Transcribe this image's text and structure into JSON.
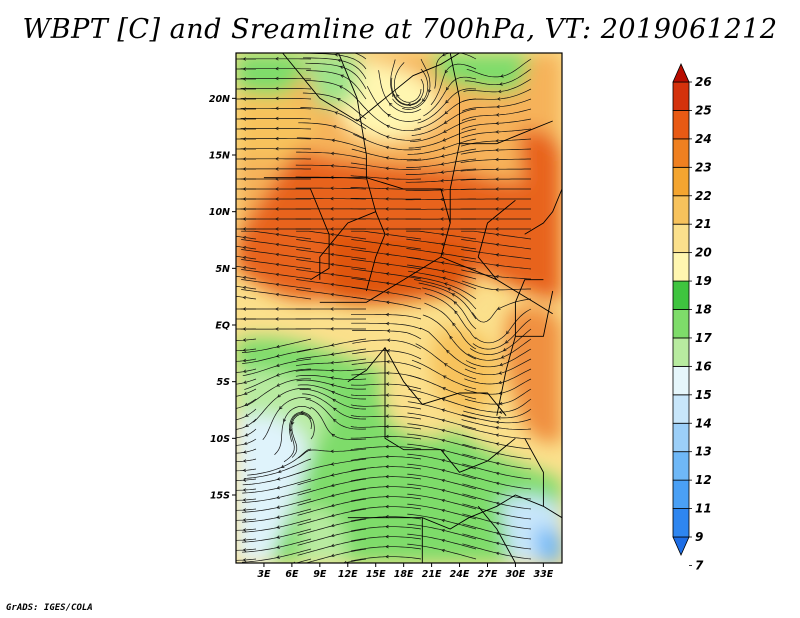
{
  "title": "WBPT [C] and Sreamline at 700hPa, VT: 2019061212",
  "credit": "GrADS: IGES/COLA",
  "map": {
    "type": "field-map-with-streamlines",
    "variable": "Wet-bulb potential temperature",
    "units": "C",
    "level": "700hPa",
    "valid_time": "2019061212",
    "lon_range": [
      0,
      35
    ],
    "lat_range": [
      -21,
      24
    ],
    "lon_ticks": [
      "3E",
      "6E",
      "9E",
      "12E",
      "15E",
      "18E",
      "21E",
      "24E",
      "27E",
      "30E",
      "33E"
    ],
    "lon_tick_values": [
      3,
      6,
      9,
      12,
      15,
      18,
      21,
      24,
      27,
      30,
      33
    ],
    "lat_ticks": [
      "20N",
      "15N",
      "10N",
      "5N",
      "EQ",
      "5S",
      "10S",
      "15S"
    ],
    "lat_tick_values": [
      20,
      15,
      10,
      5,
      0,
      -5,
      -10,
      -15
    ]
  },
  "colorbar": {
    "labels": [
      "7",
      "9",
      "11",
      "12",
      "13",
      "14",
      "15",
      "16",
      "17",
      "18",
      "19",
      "20",
      "21",
      "22",
      "23",
      "24",
      "25",
      "26"
    ],
    "colors": [
      "#1e6ee6",
      "#2e86f0",
      "#4aa0f5",
      "#6fb8f7",
      "#9ccff8",
      "#c8e6fa",
      "#e6f6fb",
      "#b8eba0",
      "#7edc6a",
      "#3fc43f",
      "#fff6b0",
      "#fbe08c",
      "#f7c25c",
      "#f4a530",
      "#ef8020",
      "#e85a14",
      "#d4320c",
      "#b80c00"
    ]
  },
  "regions": [
    {
      "name": "north-hot-band",
      "color": "#f09040"
    },
    {
      "name": "central-hot-core",
      "color": "#e8641a"
    },
    {
      "name": "southern-green",
      "color": "#80d96a"
    },
    {
      "name": "southwest-cool",
      "color": "#dff3fb"
    }
  ]
}
